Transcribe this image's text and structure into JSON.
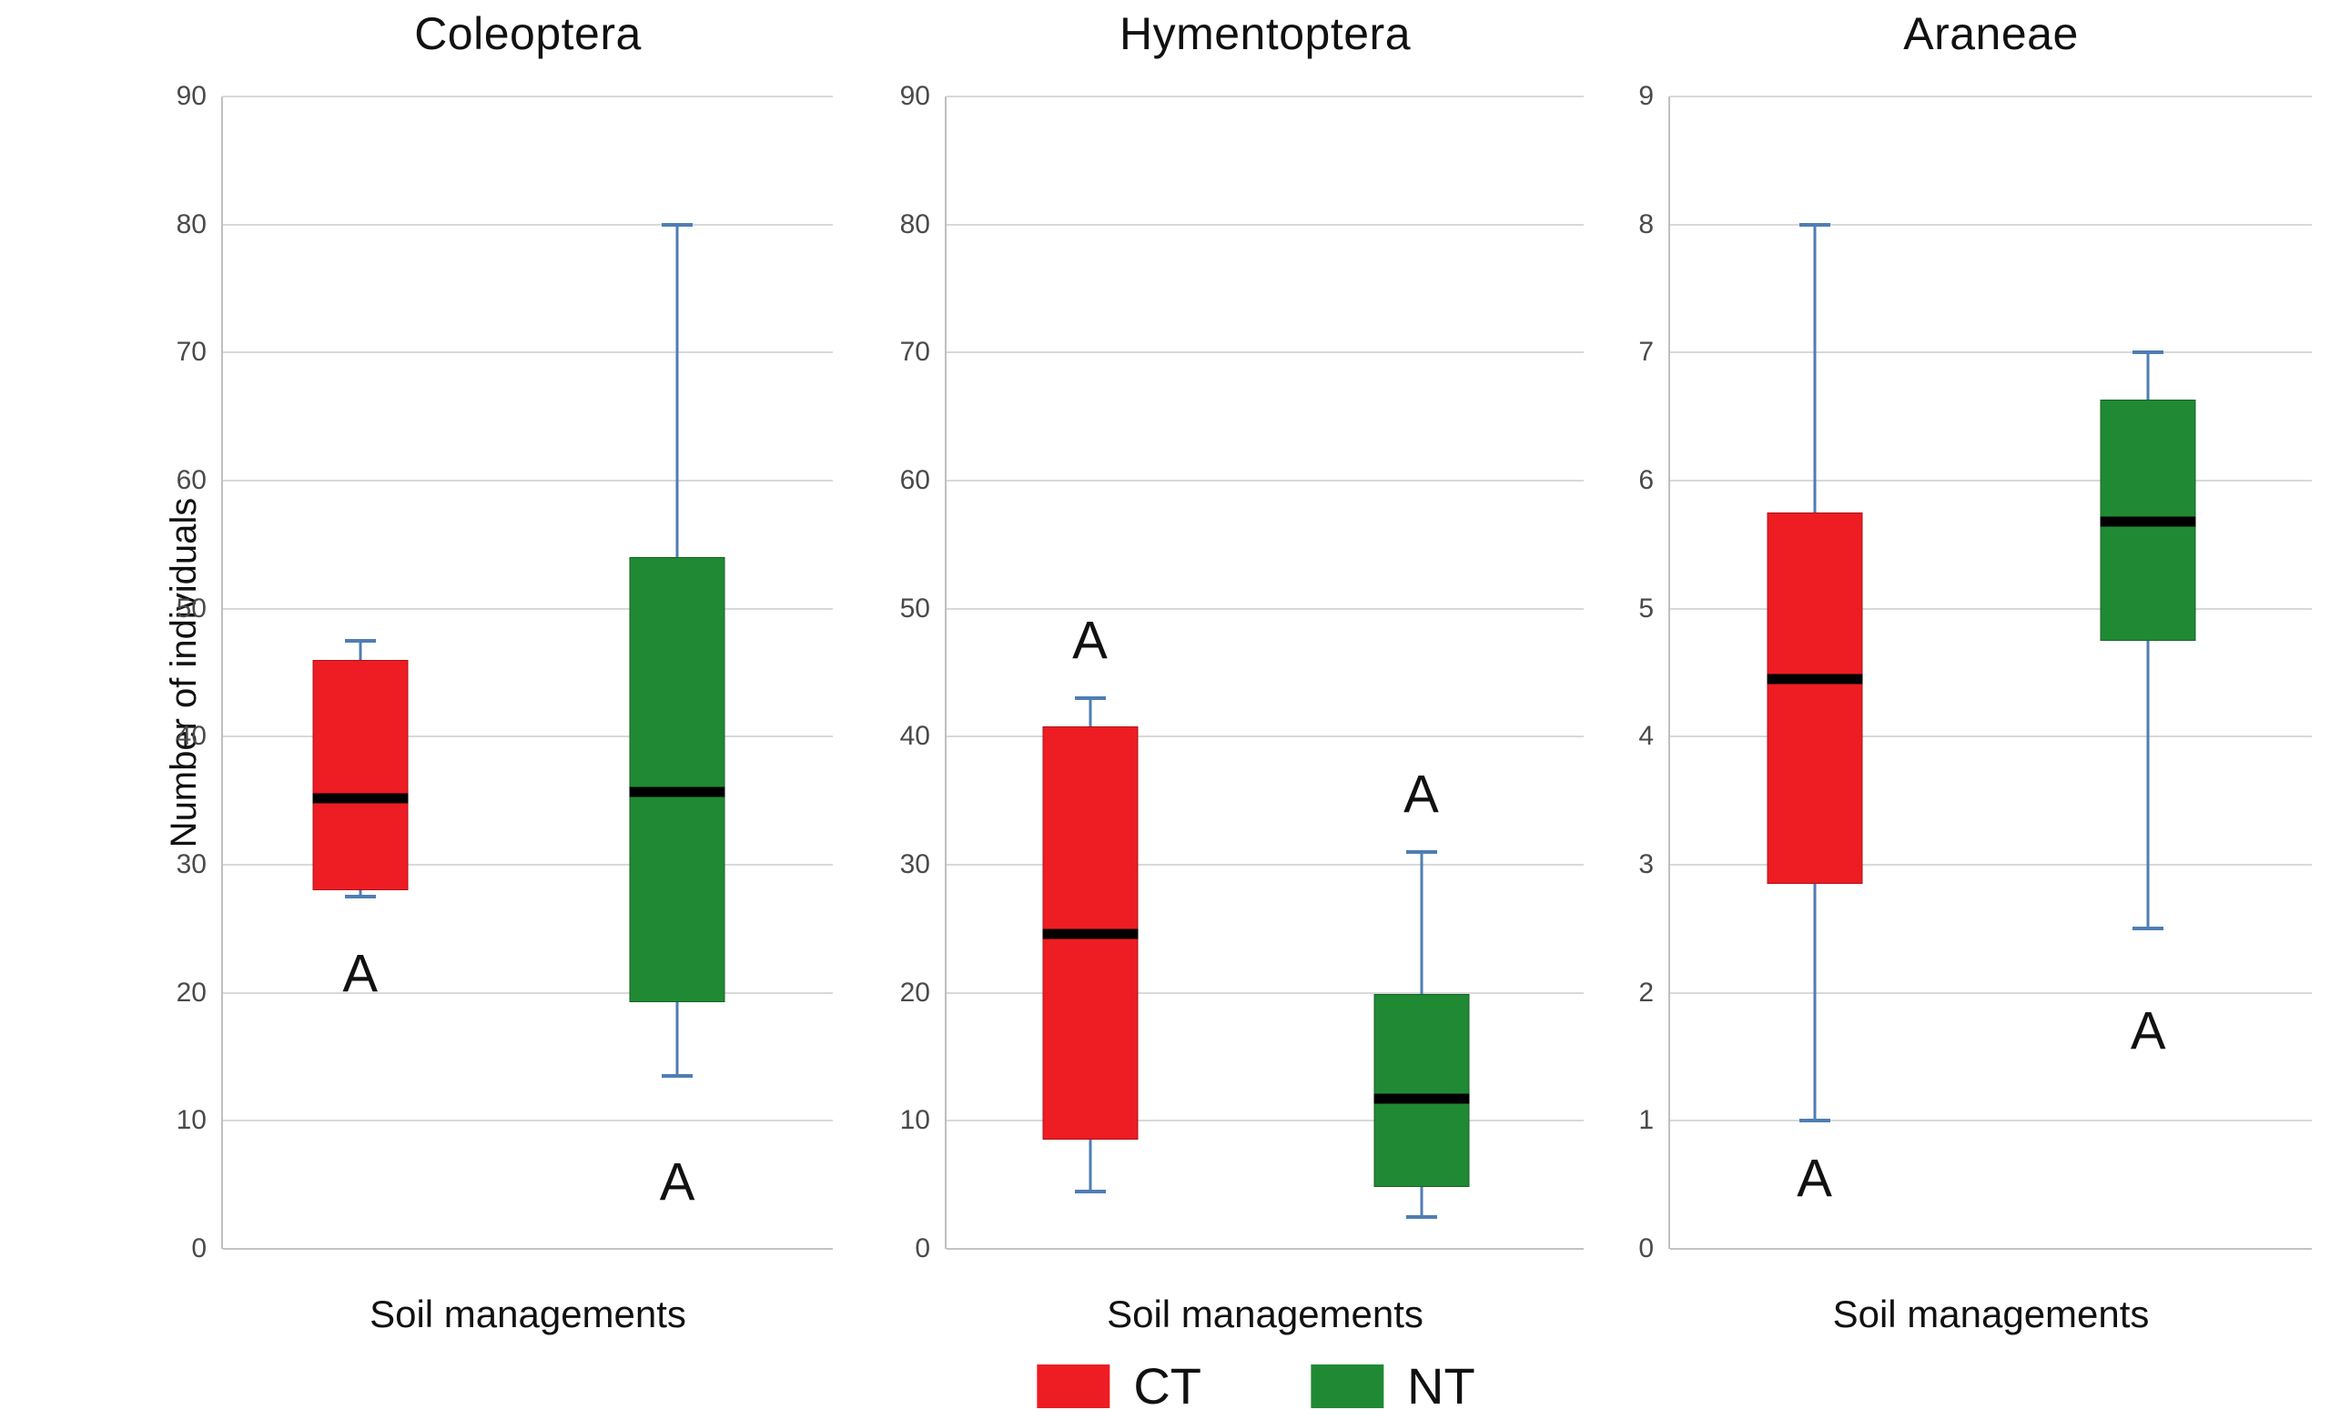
{
  "ylabel": "Number of individuals",
  "colors": {
    "ct": "#ee1c23",
    "nt": "#1f8a33",
    "whisker": "#4f7db3",
    "median": "#000000",
    "gridline": "#d9d9d9"
  },
  "legend": {
    "items": [
      {
        "label": "CT",
        "color": "#ee1c23"
      },
      {
        "label": "NT",
        "color": "#1f8a33"
      }
    ]
  },
  "chart_data": [
    {
      "type": "boxplot",
      "title": "Coleoptera",
      "xlabel": "Soil managements",
      "ylabel": "Number of individuals",
      "ylim": [
        0,
        90
      ],
      "ytick_step": 10,
      "grid": true,
      "series": [
        {
          "name": "CT",
          "color": "#ee1c23",
          "whisker_low": 27.5,
          "q1": 28,
          "median": 35.2,
          "q3": 46,
          "whisker_high": 47.5,
          "annotation": "A",
          "annotation_y": 21.5
        },
        {
          "name": "NT",
          "color": "#1f8a33",
          "whisker_low": 13.5,
          "q1": 19.3,
          "median": 35.7,
          "q3": 54,
          "whisker_high": 80,
          "annotation": "A",
          "annotation_y": 5.2
        }
      ]
    },
    {
      "type": "boxplot",
      "title": "Hymentoptera",
      "xlabel": "Soil managements",
      "ylabel": "Number of individuals",
      "ylim": [
        0,
        90
      ],
      "ytick_step": 10,
      "grid": true,
      "series": [
        {
          "name": "CT",
          "color": "#ee1c23",
          "whisker_low": 4.5,
          "q1": 8.5,
          "median": 24.6,
          "q3": 40.8,
          "whisker_high": 43,
          "annotation": "A",
          "annotation_y": 47.5
        },
        {
          "name": "NT",
          "color": "#1f8a33",
          "whisker_low": 2.5,
          "q1": 4.8,
          "median": 11.7,
          "q3": 19.9,
          "whisker_high": 31,
          "annotation": "A",
          "annotation_y": 35.5
        }
      ]
    },
    {
      "type": "boxplot",
      "title": "Araneae",
      "xlabel": "Soil managements",
      "ylabel": "Number of individuals",
      "ylim": [
        0,
        9
      ],
      "ytick_step": 1,
      "grid": true,
      "series": [
        {
          "name": "CT",
          "color": "#ee1c23",
          "whisker_low": 1.0,
          "q1": 2.85,
          "median": 4.45,
          "q3": 5.75,
          "whisker_high": 8.0,
          "annotation": "A",
          "annotation_y": 0.55
        },
        {
          "name": "NT",
          "color": "#1f8a33",
          "whisker_low": 2.5,
          "q1": 4.75,
          "median": 5.68,
          "q3": 6.63,
          "whisker_high": 7.0,
          "annotation": "A",
          "annotation_y": 1.7
        }
      ]
    }
  ]
}
